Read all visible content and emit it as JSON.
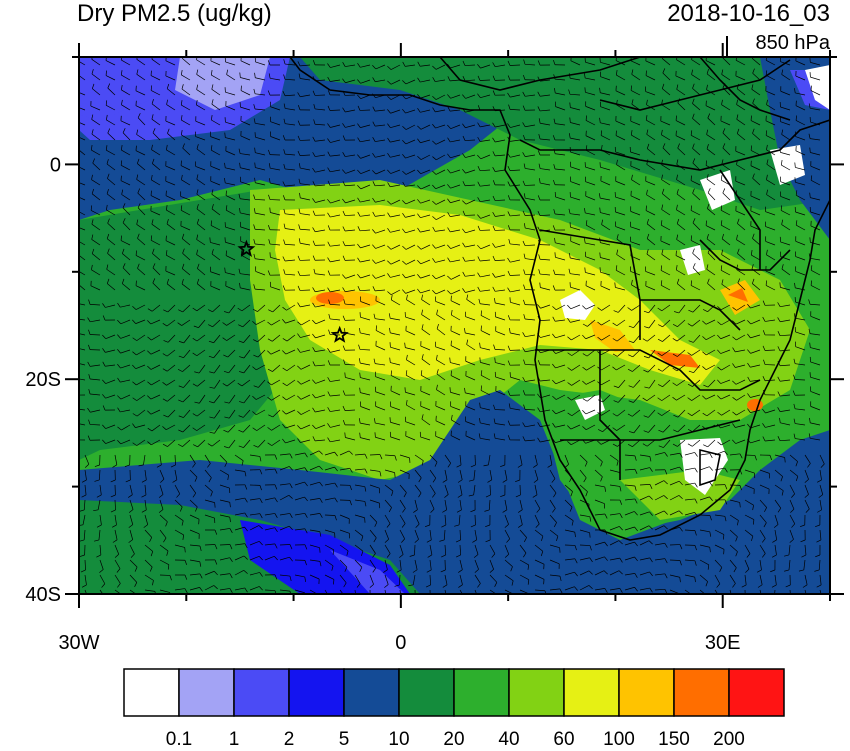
{
  "title": "Dry PM2.5 (ug/kg)",
  "datetime": "2018-10-16_03",
  "level": "850 hPa",
  "map": {
    "lon_range": [
      -30,
      40
    ],
    "lat_range": [
      -40,
      10
    ],
    "lat_ticks": [
      {
        "value": 0,
        "label": "0"
      },
      {
        "value": -20,
        "label": "20S"
      },
      {
        "value": -40,
        "label": "40S"
      }
    ],
    "lon_ticks": [
      {
        "value": -30,
        "label": "30W"
      },
      {
        "value": 0,
        "label": "0"
      },
      {
        "value": 30,
        "label": "30E"
      }
    ],
    "markers": [
      {
        "name": "star-marker",
        "lon": -14.4,
        "lat": -7.9
      },
      {
        "name": "star-marker",
        "lon": -5.7,
        "lat": -15.9
      }
    ]
  },
  "colorbar": {
    "colors": [
      "#ffffff",
      "#a3a3f5",
      "#4b4bf5",
      "#1414f0",
      "#144b96",
      "#148c3c",
      "#2daf2d",
      "#82d214",
      "#e6f014",
      "#ffc300",
      "#ff6e00",
      "#ff1414"
    ],
    "labels": [
      "0.1",
      "1",
      "2",
      "5",
      "10",
      "20",
      "40",
      "60",
      "100",
      "150",
      "200"
    ]
  }
}
